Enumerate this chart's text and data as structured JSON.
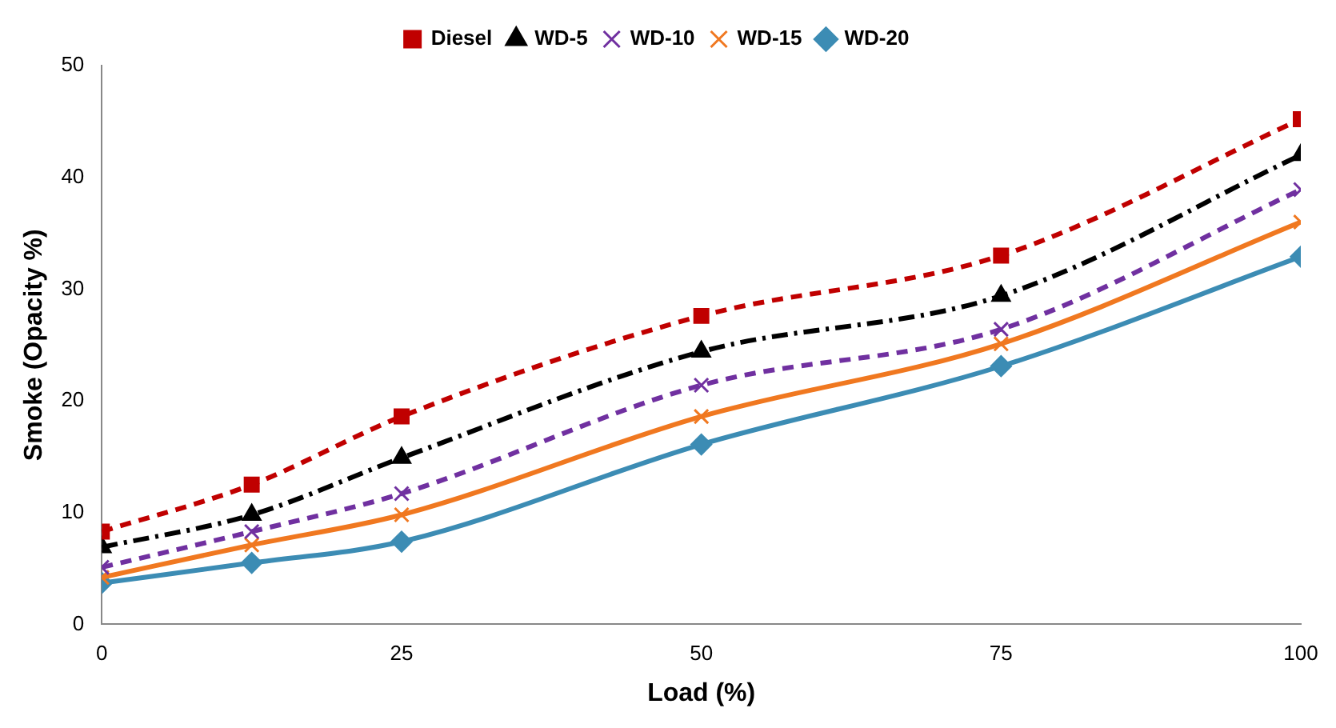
{
  "chart_data": {
    "type": "line",
    "xlabel": "Load (%)",
    "ylabel": "Smoke (Opacity %)",
    "x": [
      0,
      12.5,
      25,
      50,
      75,
      100
    ],
    "xlim": [
      0,
      100
    ],
    "xticks": [
      0,
      25,
      50,
      75,
      100
    ],
    "ylim": [
      0,
      50
    ],
    "yticks": [
      0,
      10,
      20,
      30,
      40,
      50
    ],
    "grid": false,
    "legend": "top",
    "series": [
      {
        "name": "Diesel",
        "color": "#c00000",
        "marker": "square",
        "line_style": "dashed",
        "values": [
          8.3,
          12.5,
          18.6,
          27.6,
          33.0,
          45.2
        ]
      },
      {
        "name": "WD-5",
        "color": "#000000",
        "marker": "triangle",
        "line_style": "dashdot",
        "values": [
          6.9,
          9.8,
          14.9,
          24.4,
          29.4,
          42.0
        ]
      },
      {
        "name": "WD-10",
        "color": "#7030a0",
        "marker": "cross",
        "line_style": "dashed",
        "values": [
          5.1,
          8.3,
          11.7,
          21.4,
          26.4,
          38.9
        ]
      },
      {
        "name": "WD-15",
        "color": "#f07820",
        "marker": "cross",
        "line_style": "solid",
        "values": [
          4.2,
          7.1,
          9.8,
          18.6,
          25.1,
          36.0
        ]
      },
      {
        "name": "WD-20",
        "color": "#3c8cb4",
        "marker": "diamond",
        "line_style": "solid",
        "values": [
          3.7,
          5.5,
          7.4,
          16.1,
          23.1,
          32.9
        ]
      }
    ]
  }
}
